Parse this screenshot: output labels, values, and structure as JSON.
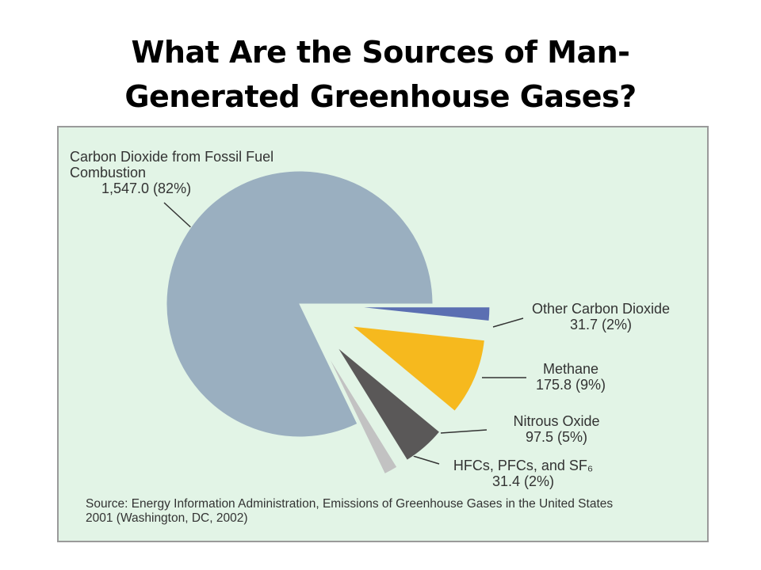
{
  "chart_data": {
    "type": "pie",
    "title": "What Are the Sources of Man-Generated Greenhouse Gases?",
    "categories": [
      "Carbon Dioxide from Fossil Fuel Combustion",
      "Other Carbon Dioxide",
      "Methane",
      "Nitrous Oxide",
      "HFCs, PFCs, and SF₆"
    ],
    "values": [
      1547.0,
      31.7,
      175.8,
      97.5,
      31.4
    ],
    "value_labels": [
      "1,547.0 (82%)",
      "31.7 (2%)",
      "175.8 (9%)",
      "97.5 (5%)",
      "31.4 (2%)"
    ],
    "colors": [
      "#9aafc0",
      "#5b6fb2",
      "#f6b91e",
      "#5a5858",
      "#c2c2c2"
    ],
    "source": "Source: Energy Information Administration, Emissions of Greenhouse Gases in the United States 2001 (Washington, DC, 2002)"
  }
}
